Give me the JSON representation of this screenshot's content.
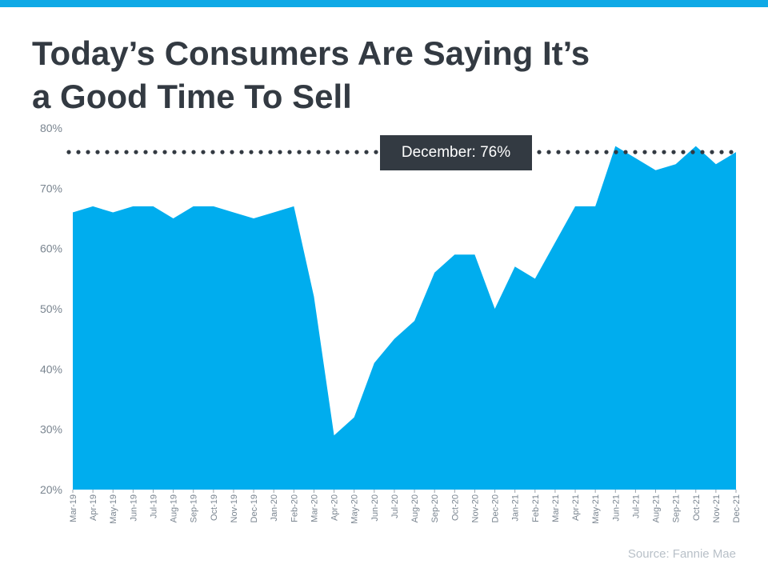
{
  "title_line1": "Today’s Consumers Are Saying It’s",
  "title_line2": "a Good Time To Sell",
  "source": "Source: Fannie Mae",
  "callout": "December: 76%",
  "colors": {
    "accent": "#00adee",
    "dark": "#333a42",
    "topbar": "#0fa9e6"
  },
  "chart_data": {
    "type": "area",
    "title": "Today’s Consumers Are Saying It’s a Good Time To Sell",
    "categories": [
      "Mar-19",
      "Apr-19",
      "May-19",
      "Jun-19",
      "Jul-19",
      "Aug-19",
      "Sep-19",
      "Oct-19",
      "Nov-19",
      "Dec-19",
      "Jan-20",
      "Feb-20",
      "Mar-20",
      "Apr-20",
      "May-20",
      "Jun-20",
      "Jul-20",
      "Aug-20",
      "Sep-20",
      "Oct-20",
      "Nov-20",
      "Dec-20",
      "Jan-21",
      "Feb-21",
      "Mar-21",
      "Apr-21",
      "May-21",
      "Jun-21",
      "Jul-21",
      "Aug-21",
      "Sep-21",
      "Oct-21",
      "Nov-21",
      "Dec-21"
    ],
    "values": [
      66,
      67,
      66,
      67,
      67,
      65,
      67,
      67,
      66,
      65,
      66,
      67,
      52,
      29,
      32,
      41,
      45,
      48,
      56,
      59,
      59,
      50,
      57,
      55,
      61,
      67,
      67,
      77,
      75,
      73,
      74,
      77,
      74,
      76
    ],
    "ylim": [
      20,
      80
    ],
    "yticks": [
      "20%",
      "30%",
      "40%",
      "50%",
      "60%",
      "70%",
      "80%"
    ],
    "yticks_values": [
      20,
      30,
      40,
      50,
      60,
      70,
      80
    ],
    "reference_line": {
      "value": 76,
      "style": "dotted",
      "label": "December: 76%"
    },
    "grid": false,
    "color": "#00adee"
  }
}
